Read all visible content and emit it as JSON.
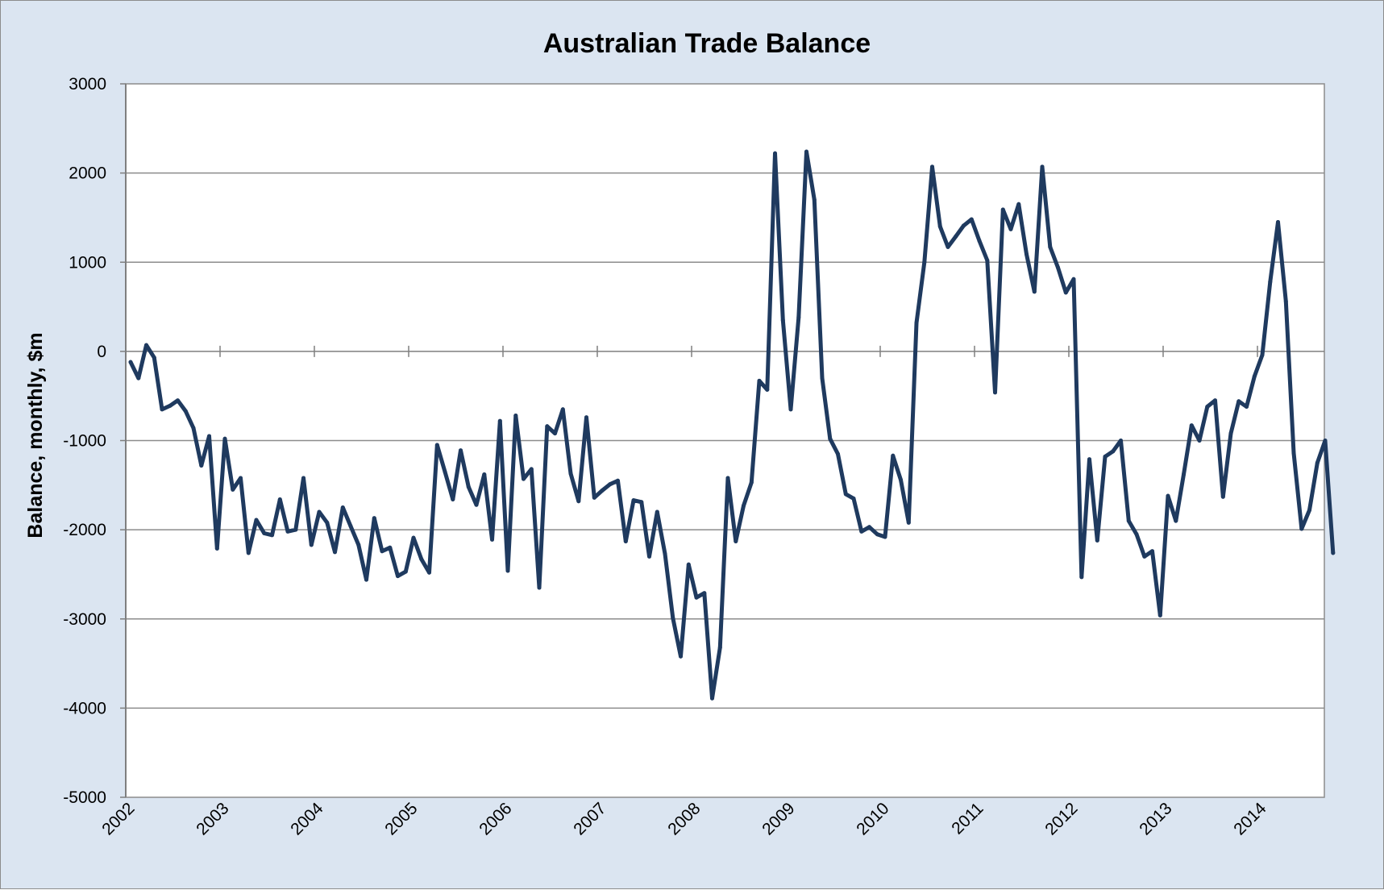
{
  "chart_data": {
    "type": "line",
    "title": "Australian Trade Balance",
    "xlabel": "",
    "ylabel": "Balance, monthly, $m",
    "ylim": [
      -5000,
      3000
    ],
    "y_ticks": [
      3000,
      2000,
      1000,
      0,
      -1000,
      -2000,
      -3000,
      -4000,
      -5000
    ],
    "x_tick_labels": [
      "2002",
      "2003",
      "2004",
      "2005",
      "2006",
      "2007",
      "2008",
      "2009",
      "2010",
      "2011",
      "2012",
      "2013",
      "2014"
    ],
    "grid": true,
    "legend": "none",
    "line_color": "#1f3a5f",
    "plot_background": "#ffffff",
    "chart_background": "#dbe5f1",
    "series": [
      {
        "start": "2002-01",
        "values": [
          -120,
          -300,
          70,
          -70,
          -650,
          -610,
          -550,
          -670,
          -860,
          -1280,
          -950,
          -2210,
          -980,
          -1550,
          -1420,
          -2260,
          -1890,
          -2040,
          -2060,
          -1660,
          -2020,
          -2000,
          -1420,
          -2170,
          -1800,
          -1920,
          -2250,
          -1750,
          -1960,
          -2170,
          -2560,
          -1870,
          -2240,
          -2200,
          -2520,
          -2470,
          -2090,
          -2330,
          -2480,
          -1050,
          -1350,
          -1660,
          -1110,
          -1520,
          -1720,
          -1380,
          -2110,
          -780,
          -2460,
          -720,
          -1430,
          -1320,
          -2650,
          -840,
          -920,
          -650,
          -1370,
          -1680,
          -740,
          -1640,
          -1560,
          -1490,
          -1450,
          -2130,
          -1670,
          -1690,
          -2300,
          -1800,
          -2270,
          -2990,
          -3420,
          -2390,
          -2760,
          -2710,
          -3890,
          -3320,
          -1420,
          -2130,
          -1730,
          -1470,
          -330,
          -430,
          2220,
          350,
          -650,
          380,
          2240,
          1700,
          -300,
          -980,
          -1150,
          -1600,
          -1650,
          -2020,
          -1970,
          -2050,
          -2080,
          -1170,
          -1440,
          -1920,
          320,
          1000,
          2070,
          1400,
          1170,
          1290,
          1410,
          1480,
          1240,
          1020,
          -460,
          1590,
          1370,
          1650,
          1090,
          670,
          2070,
          1170,
          940,
          660,
          810,
          -2530,
          -1210,
          -2120,
          -1180,
          -1120,
          -1000,
          -1900,
          -2050,
          -2300,
          -2240,
          -2960,
          -1620,
          -1900,
          -1380,
          -830,
          -1000,
          -620,
          -550,
          -1630,
          -920,
          -560,
          -620,
          -280,
          -40,
          780,
          1450,
          560,
          -1140,
          -1990,
          -1780,
          -1250,
          -1000,
          -2260
        ]
      }
    ]
  }
}
